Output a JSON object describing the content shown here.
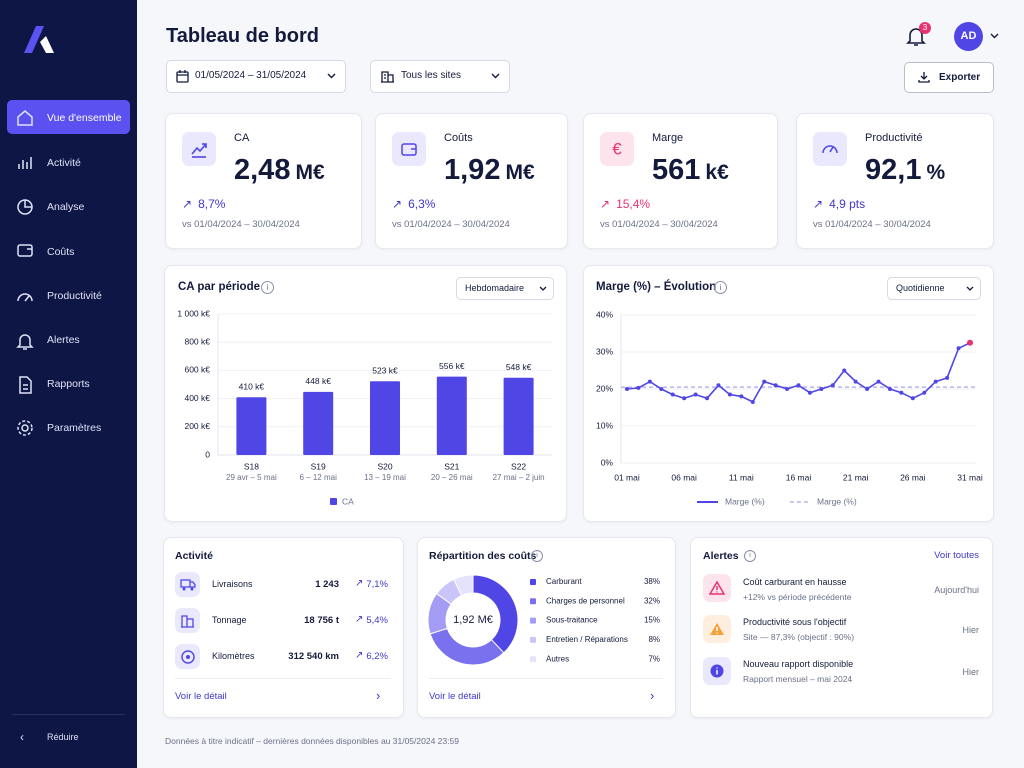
{
  "sidebar": {
    "nav": [
      "Vue d'ensemble",
      "Activité",
      "Analyse",
      "Coûts",
      "Productivité",
      "Alertes",
      "Rapports",
      "Paramètres"
    ],
    "collapse": "Réduire"
  },
  "header": {
    "title": "Tableau de bord",
    "date_range": "01/05/2024 – 31/05/2024",
    "site": "Tous les sites",
    "export": "Exporter",
    "notifications": 3,
    "avatar": "AD"
  },
  "kpis": [
    {
      "label": "CA",
      "value": "2,48",
      "unit": "M€",
      "change": "8,7%",
      "compare": "vs 01/04/2024 – 30/04/2024"
    },
    {
      "label": "Coûts",
      "value": "1,92",
      "unit": "M€",
      "change": "6,3%",
      "compare": "vs 01/04/2024 – 30/04/2024"
    },
    {
      "label": "Marge",
      "value": "561",
      "unit": "k€",
      "change": "15,4%",
      "compare": "vs 01/04/2024 – 30/04/2024"
    },
    {
      "label": "Productivité",
      "value": "92,1",
      "unit": "%",
      "change": "4,9 pts",
      "compare": "vs 01/04/2024 – 30/04/2024"
    }
  ],
  "chart_data": [
    {
      "type": "bar",
      "title": "CA par période",
      "period": "Hebdomadaire",
      "categories": [
        "S18",
        "S19",
        "S20",
        "S21",
        "S22"
      ],
      "sublabels": [
        "29 avr – 5 mai",
        "6 – 12 mai",
        "13 – 19 mai",
        "20 – 26 mai",
        "27 mai – 2 juin"
      ],
      "series": [
        {
          "name": "CA",
          "color": "#5046e6",
          "values": [
            410,
            448,
            523,
            556,
            548
          ],
          "value_labels": [
            "410 k€",
            "448 k€",
            "523 k€",
            "556 k€",
            "548 k€"
          ]
        }
      ],
      "ylim": [
        0,
        1000
      ],
      "yticks": [
        0,
        {
          "value": 200,
          "label": "200 k€"
        },
        {
          "value": 400,
          "label": "400 k€"
        },
        {
          "value": 600,
          "label": "600 k€"
        },
        {
          "value": 800,
          "label": "800 k€"
        },
        {
          "value": 1000,
          "label": "1 000 k€"
        }
      ],
      "grid": true
    },
    {
      "type": "line",
      "title": "Marge (%) – Évolution",
      "period": "Quotidienne",
      "categories": [
        "01 mai",
        null,
        null,
        null,
        null,
        "06 mai",
        null,
        null,
        null,
        null,
        "11 mai",
        null,
        null,
        null,
        null,
        "16 mai",
        null,
        null,
        null,
        null,
        "21 mai",
        null,
        null,
        null,
        null,
        "26 mai",
        null,
        null,
        null,
        null,
        "31 mai"
      ],
      "series": [
        {
          "name": "Marge (%)",
          "color": "#5046e6",
          "last_point_color": "#e8336f",
          "values": [
            20,
            20.3,
            22,
            20,
            18.5,
            17.5,
            18.5,
            17.5,
            21,
            18.5,
            18,
            16.5,
            22,
            21,
            20,
            21,
            19,
            20,
            21,
            25,
            22,
            20,
            22,
            20,
            19,
            17.5,
            19,
            22,
            23,
            31,
            32.5
          ]
        }
      ],
      "reference_line": {
        "name": "Marge (%)",
        "value": 20.5,
        "color": "#a9a6e8"
      },
      "ylim": [
        0,
        40
      ],
      "yticks": [
        {
          "value": 0,
          "label": "0%"
        },
        {
          "value": 10,
          "label": "10%"
        },
        {
          "value": 20,
          "label": "20%"
        },
        {
          "value": 30,
          "label": "30%"
        },
        {
          "value": 40,
          "label": "40%"
        }
      ],
      "grid": true
    },
    {
      "type": "pie",
      "title": "Répartition des coûts",
      "center_label": "1,92 M€",
      "categories": [
        "Carburant",
        "Charges de personnel",
        "Sous-traitance",
        "Entretien / Réparations",
        "Autres"
      ],
      "values": [
        38,
        32,
        15,
        8,
        7
      ],
      "value_labels": [
        "38%",
        "32%",
        "15%",
        "8%",
        "7%"
      ],
      "colors": [
        "#4f46e5",
        "#7a71ef",
        "#a39cf5",
        "#c9c5f9",
        "#e4e2fc"
      ]
    }
  ],
  "activity": {
    "title": "Activité",
    "rows": [
      {
        "label": "Livraisons",
        "value": "1 243",
        "change": "7,1%"
      },
      {
        "label": "Tonnage",
        "value": "18 756 t",
        "change": "5,4%"
      },
      {
        "label": "Kilomètres",
        "value": "312 540 km",
        "change": "6,2%"
      }
    ],
    "link": "Voir le détail"
  },
  "costs_link": "Voir le détail",
  "alerts": {
    "title": "Alertes",
    "link": "Voir toutes",
    "items": [
      {
        "title": "Coût carburant en hausse",
        "detail": "+12% vs période précédente",
        "time": "Aujourd'hui"
      },
      {
        "title": "Productivité sous l'objectif",
        "detail": "Site — 87,3% (objectif : 90%)",
        "time": "Hier"
      },
      {
        "title": "Nouveau rapport disponible",
        "detail": "Rapport mensuel – mai 2024",
        "time": "Hier"
      }
    ]
  },
  "footer": "Données à titre indicatif – dernières données disponibles au 31/05/2024 23:59"
}
